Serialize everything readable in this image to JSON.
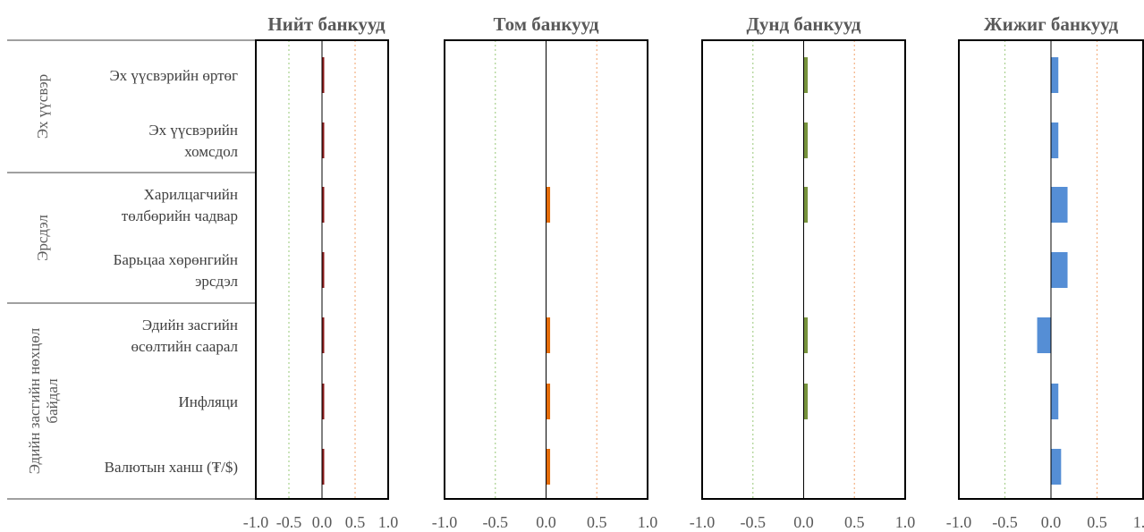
{
  "chart_data": {
    "type": "bar",
    "orientation": "horizontal",
    "groups": [
      {
        "label": "Эх үүсвэр",
        "items": [
          0,
          1
        ]
      },
      {
        "label": "Эрсдэл",
        "items": [
          2,
          3
        ]
      },
      {
        "label": "Эдийн засгийн нөхцөл байдал",
        "items": [
          4,
          5,
          6
        ]
      }
    ],
    "categories": [
      "Эх үүсвэрийн өртөг",
      "Эх үүсвэрийн хомсдол",
      "Харилцагчийн төлбөрийн чадвар",
      "Барьцаа хөрөнгийн эрсдэл",
      "Эдийн засгийн өсөлтийн саарал",
      "Инфляци",
      "Валютын ханш (₮/$)"
    ],
    "category_lines": [
      [
        "Эх үүсвэрийн өртөг"
      ],
      [
        "Эх үүсвэрийн",
        "хомсдол"
      ],
      [
        "Харилцагчийн",
        "төлбөрийн чадвар"
      ],
      [
        "Барьцаа хөрөнгийн",
        "эрсдэл"
      ],
      [
        "Эдийн засгийн",
        "өсөлтийн саарал"
      ],
      [
        "Инфляци"
      ],
      [
        "Валютын ханш (₮/$)"
      ]
    ],
    "xlim": [
      -1.0,
      1.0
    ],
    "xticks": [
      "-1.0",
      "-0.5",
      "0.0",
      "0.5",
      "1.0"
    ],
    "reference_lines": [
      {
        "x": -0.5,
        "color": "#a9d18e"
      },
      {
        "x": 0.5,
        "color": "#f4b183"
      }
    ],
    "panels": [
      {
        "title": "Нийт банкууд",
        "color": "#8b1a1a",
        "values": [
          0.01,
          0.01,
          0.03,
          0.02,
          0.02,
          0.02,
          0.02
        ]
      },
      {
        "title": "Том банкууд",
        "color": "#e36c0a",
        "values": [
          null,
          null,
          0.04,
          null,
          0.04,
          0.04,
          0.04
        ]
      },
      {
        "title": "Дунд банкууд",
        "color": "#77933c",
        "values": [
          0.04,
          0.04,
          0.04,
          null,
          0.04,
          0.04,
          null
        ]
      },
      {
        "title": "Жижиг банкууд",
        "color": "#558ed5",
        "values": [
          0.08,
          0.08,
          0.18,
          0.18,
          -0.15,
          0.08,
          0.11
        ]
      }
    ]
  }
}
